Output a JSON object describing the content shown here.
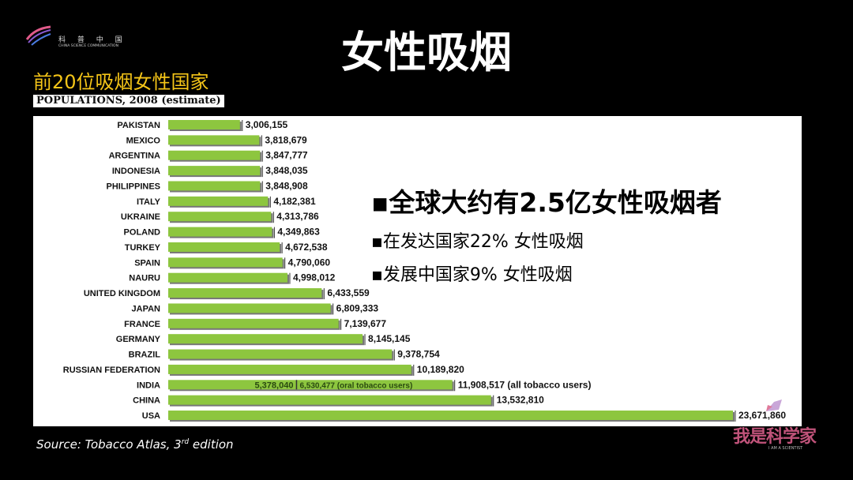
{
  "logo": {
    "cn": "科 普 中 国",
    "en": "CHINA SCIENCE COMMUNICATION"
  },
  "title": "女性吸烟",
  "subtitle": "前20位吸烟女性国家",
  "chart_header": "POPULATIONS, 2008 (estimate)",
  "bullets": {
    "main": "▪全球大约有2.5亿女性吸烟者",
    "items": [
      "▪在发达国家22% 女性吸烟",
      "▪发展中国家9% 女性吸烟"
    ]
  },
  "source": {
    "text": "Source: Tobacco Atlas, 3",
    "sup": "rd",
    "tail": " edition"
  },
  "brand": {
    "cn": "我是科学家",
    "en": "I AM A SCIENTIST"
  },
  "chart_data": {
    "type": "bar",
    "orientation": "horizontal",
    "title": "POPULATIONS, 2008 (estimate)",
    "bar_color": "#8dc63f",
    "categories": [
      "PAKISTAN",
      "MEXICO",
      "ARGENTINA",
      "INDONESIA",
      "PHILIPPINES",
      "ITALY",
      "UKRAINE",
      "POLAND",
      "TURKEY",
      "SPAIN",
      "NAURU",
      "UNITED KINGDOM",
      "JAPAN",
      "FRANCE",
      "GERMANY",
      "BRAZIL",
      "RUSSIAN FEDERATION",
      "INDIA",
      "CHINA",
      "USA"
    ],
    "values": [
      3006155,
      3818679,
      3847777,
      3848035,
      3848908,
      4182381,
      4313786,
      4349863,
      4672538,
      4790060,
      4998012,
      6433559,
      6809333,
      7139677,
      8145145,
      9378754,
      10189820,
      11908517,
      13532810,
      23671860
    ],
    "labels": [
      "3,006,155",
      "3,818,679",
      "3,847,777",
      "3,848,035",
      "3,848,908",
      "4,182,381",
      "4,313,786",
      "4,349,863",
      "4,672,538",
      "4,790,060",
      "4,998,012",
      "6,433,559",
      "6,809,333",
      "7,139,677",
      "8,145,145",
      "9,378,754",
      "10,189,820",
      "11,908,517 (all tobacco users)",
      "13,532,810",
      "23,671,860"
    ],
    "india_breakdown": {
      "smokers": 5378040,
      "smokers_label": "5,378,040",
      "oral": 6530477,
      "oral_label": "6,530,477 (oral tobacco users)"
    }
  }
}
